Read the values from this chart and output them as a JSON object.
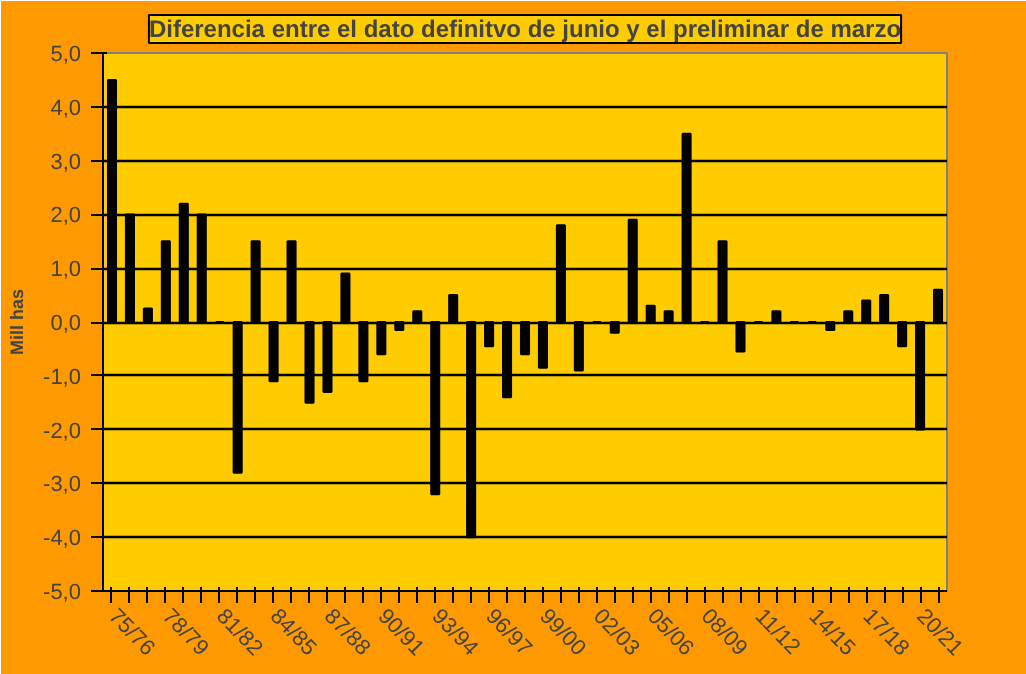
{
  "chart_data": {
    "type": "bar",
    "title": "Diferencia entre el dato definitvo de junio y el preliminar de marzo",
    "ylabel": "Mill has",
    "categories": [
      "75/76",
      null,
      null,
      "78/79",
      null,
      null,
      "81/82",
      null,
      null,
      "84/85",
      null,
      null,
      "87/88",
      null,
      null,
      "90/91",
      null,
      null,
      "93/94",
      null,
      null,
      "96/97",
      null,
      null,
      "99/00",
      null,
      null,
      "02/03",
      null,
      null,
      "05/06",
      null,
      null,
      "08/09",
      null,
      null,
      "11/12",
      null,
      null,
      "14/15",
      null,
      null,
      "17/18",
      null,
      null,
      "20/21",
      null
    ],
    "values": [
      4.5,
      2.0,
      0.25,
      1.5,
      2.2,
      2.0,
      0,
      -2.8,
      1.5,
      -1.1,
      1.5,
      -1.5,
      -1.3,
      0.9,
      -1.1,
      -0.6,
      -0.15,
      0.2,
      -3.2,
      0.5,
      -4.0,
      -0.45,
      -1.4,
      -0.6,
      -0.85,
      1.8,
      -0.9,
      0,
      -0.2,
      1.9,
      0.3,
      0.2,
      3.5,
      0,
      1.5,
      -0.55,
      0,
      0.2,
      0,
      0,
      -0.15,
      0.2,
      0.4,
      0.5,
      -0.45,
      -2.0,
      0.6
    ],
    "color": "#000000",
    "ylim": [
      -5,
      5
    ],
    "yticks": [
      {
        "value": -5,
        "label": "-5,0"
      },
      {
        "value": -4,
        "label": "-4,0"
      },
      {
        "value": -3,
        "label": "-3,0"
      },
      {
        "value": -2,
        "label": "-2,0"
      },
      {
        "value": -1,
        "label": "-1,0"
      },
      {
        "value": 0,
        "label": "0,0"
      },
      {
        "value": 1,
        "label": "1,0"
      },
      {
        "value": 2,
        "label": "2,0"
      },
      {
        "value": 3,
        "label": "3,0"
      },
      {
        "value": 4,
        "label": "4,0"
      },
      {
        "value": 5,
        "label": "5,0"
      }
    ],
    "grid": "y"
  }
}
